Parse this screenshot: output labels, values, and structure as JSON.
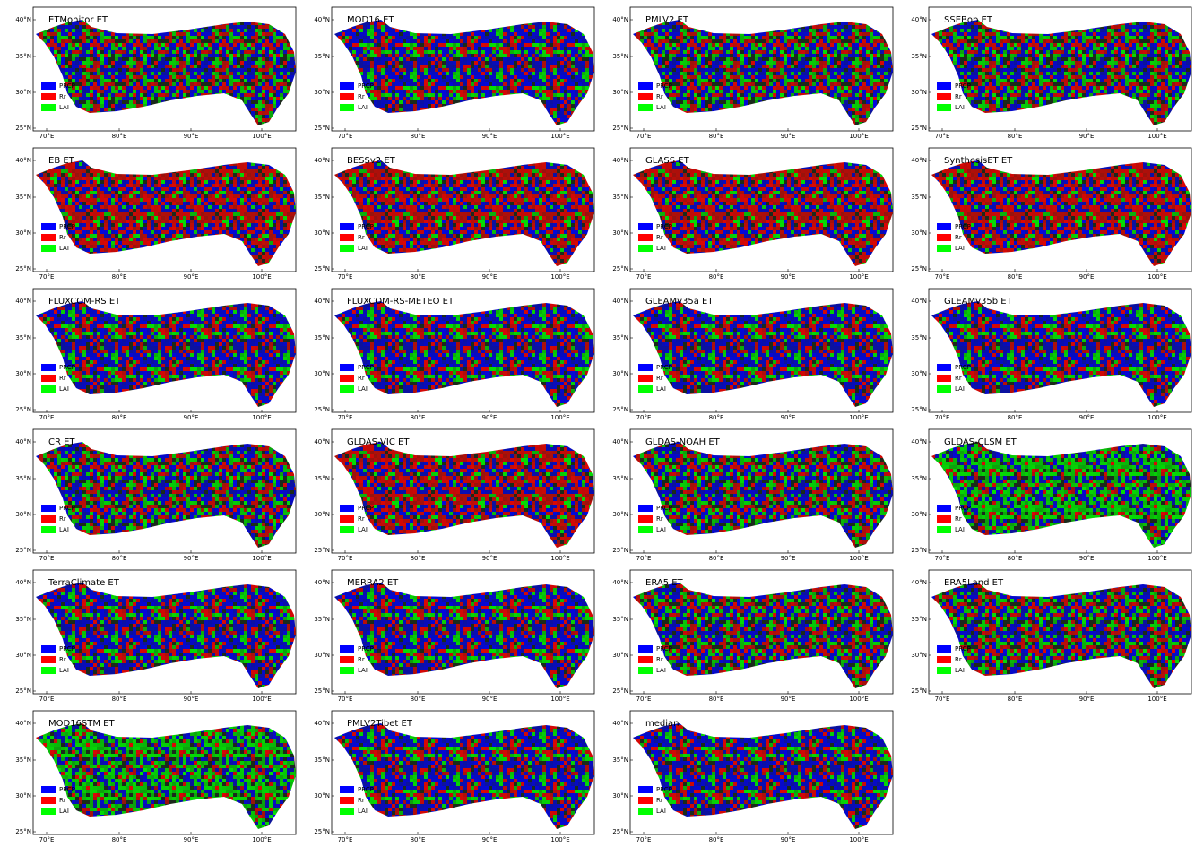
{
  "panels": [
    {
      "title": "ETMonitor ET"
    },
    {
      "title": "MOD16 ET"
    },
    {
      "title": "PMLV2 ET"
    },
    {
      "title": "SSEBop ET"
    },
    {
      "title": "EB ET"
    },
    {
      "title": "BESSv2 ET"
    },
    {
      "title": "GLASS ET"
    },
    {
      "title": "SynthesisET  ET"
    },
    {
      "title": "FLUXCOM-RS ET"
    },
    {
      "title": "FLUXCOM-RS-METEO ET"
    },
    {
      "title": "GLEAMv35a ET"
    },
    {
      "title": "GLEAMv35b ET"
    },
    {
      "title": "CR ET"
    },
    {
      "title": "GLDAS-VIC ET"
    },
    {
      "title": "GLDAS-NOAH ET"
    },
    {
      "title": "GLDAS-CLSM ET"
    },
    {
      "title": "TerraClimate ET"
    },
    {
      "title": "MERRA2 ET"
    },
    {
      "title": "ERA5 ET"
    },
    {
      "title": "ERA5Land ET"
    },
    {
      "title": "MOD16STM ET"
    },
    {
      "title": "PMLV2Tibet ET"
    },
    {
      "title": "median"
    }
  ],
  "legend": [
    {
      "label": "PRCP",
      "color": "#0000ff"
    },
    {
      "label": "Rr",
      "color": "#ff0000"
    },
    {
      "label": "LAI",
      "color": "#00ff00"
    }
  ],
  "x_ticks": [
    "70°E",
    "80°E",
    "90°E",
    "100°E"
  ],
  "y_ticks": [
    "40°N",
    "35°N",
    "30°N",
    "25°N"
  ]
}
